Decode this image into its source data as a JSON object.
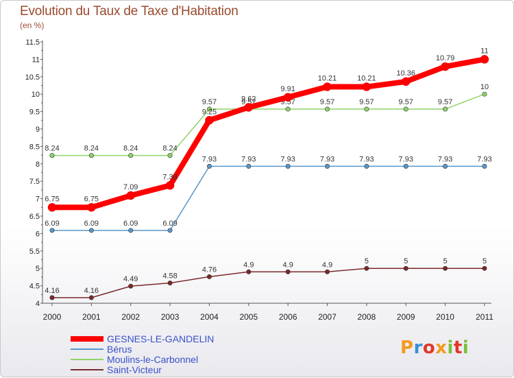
{
  "header": {
    "title": "Evolution du Taux de Taxe d'Habitation",
    "subtitle": "(en %)"
  },
  "logo": {
    "text": "Proxiti"
  },
  "chart_data": {
    "type": "line",
    "x": [
      "2000",
      "2001",
      "2002",
      "2003",
      "2004",
      "2005",
      "2006",
      "2007",
      "2008",
      "2009",
      "2010",
      "2011"
    ],
    "ylim": [
      4,
      11.5
    ],
    "yticks": [
      "4",
      "4.5",
      "5",
      "5.5",
      "6",
      "6.5",
      "7",
      "7.5",
      "8",
      "8.5",
      "9",
      "9.5",
      "10",
      "10.5",
      "11",
      "11.5"
    ],
    "grid": false,
    "legend": "bottom-left",
    "series": [
      {
        "name": "GESNES-LE-GANDELIN",
        "color": "#ff0000",
        "values": [
          6.75,
          6.75,
          7.09,
          7.38,
          9.25,
          9.62,
          9.91,
          10.21,
          10.21,
          10.36,
          10.79,
          11
        ],
        "labels": [
          "6.75",
          "6.75",
          "7.09",
          "7.38",
          "9.25",
          "9.62",
          "9.91",
          "10.21",
          "10.21",
          "10.36",
          "10.79",
          "11"
        ]
      },
      {
        "name": "Bérus",
        "color": "#5b96c9",
        "values": [
          6.09,
          6.09,
          6.09,
          6.09,
          7.93,
          7.93,
          7.93,
          7.93,
          7.93,
          7.93,
          7.93,
          7.93
        ],
        "labels": [
          "6.09",
          "6.09",
          "6.09",
          "6.09",
          "7.93",
          "7.93",
          "7.93",
          "7.93",
          "7.93",
          "7.93",
          "7.93",
          "7.93"
        ]
      },
      {
        "name": "Moulins-le-Carbonnel",
        "color": "#8fd36a",
        "values": [
          8.24,
          8.24,
          8.24,
          8.24,
          9.57,
          9.57,
          9.57,
          9.57,
          9.57,
          9.57,
          9.57,
          10
        ],
        "labels": [
          "8.24",
          "8.24",
          "8.24",
          "8.24",
          "9.57",
          "9.57",
          "9.57",
          "9.57",
          "9.57",
          "9.57",
          "9.57",
          "10"
        ]
      },
      {
        "name": "Saint-Victeur",
        "color": "#7a2a2a",
        "values": [
          4.16,
          4.16,
          4.49,
          4.58,
          4.76,
          4.9,
          4.9,
          4.9,
          5,
          5,
          5,
          5
        ],
        "labels": [
          "4.16",
          "4.16",
          "4.49",
          "4.58",
          "4.76",
          "4.9",
          "4.9",
          "4.9",
          "5",
          "5",
          "5",
          "5"
        ]
      }
    ]
  }
}
